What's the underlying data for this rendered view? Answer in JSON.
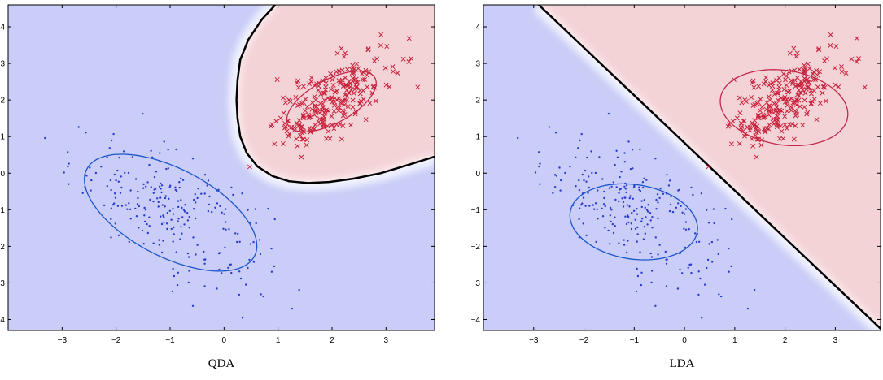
{
  "colors": {
    "blue_region": "#c9cdf7",
    "red_region": "#f4d3d7",
    "blue_points": "#2a3bd0",
    "red_points": "#c8203a",
    "blue_ellipse": "#1a55cc",
    "red_ellipse": "#c2284a",
    "boundary": "#000000"
  },
  "chart_data": [
    {
      "type": "scatter",
      "title": "QDA",
      "xlabel": "",
      "ylabel": "",
      "xlim": [
        -4,
        3.9
      ],
      "ylim": [
        -4.3,
        4.6
      ],
      "x_ticks": [
        -3,
        -2,
        -1,
        0,
        1,
        2,
        3
      ],
      "y_ticks": [
        -4,
        -3,
        -2,
        -1,
        0,
        1,
        2,
        3,
        4
      ],
      "grid": false,
      "series": [
        {
          "class": "blue",
          "marker": "dot",
          "n_points": 250,
          "mean": [
            -1,
            -1
          ],
          "cov": [
            [
              0.85,
              -0.55
            ],
            [
              -0.55,
              0.95
            ]
          ]
        },
        {
          "class": "red",
          "marker": "x",
          "n_points": 250,
          "mean": [
            2,
            2
          ],
          "cov": [
            [
              0.28,
              0.22
            ],
            [
              0.22,
              0.42
            ]
          ]
        }
      ],
      "ellipses": [
        {
          "class": "blue",
          "center": [
            -0.99,
            -1.08
          ],
          "semi_axes": [
            2.0,
            1.05
          ],
          "angle_deg": -45
        },
        {
          "class": "red",
          "center": [
            1.99,
            1.96
          ],
          "semi_axes": [
            1.05,
            0.52
          ],
          "angle_deg": 45
        }
      ],
      "decision_boundary": "quadratic"
    },
    {
      "type": "scatter",
      "title": "LDA",
      "xlabel": "",
      "ylabel": "",
      "xlim": [
        -4,
        3.9
      ],
      "ylim": [
        -4.3,
        4.6
      ],
      "x_ticks": [
        -3,
        -2,
        -1,
        0,
        1,
        2,
        3
      ],
      "y_ticks": [
        -4,
        -3,
        -2,
        -1,
        0,
        1,
        2,
        3,
        4
      ],
      "grid": false,
      "series": [
        {
          "class": "blue",
          "marker": "dot",
          "n_points": 250,
          "mean": [
            -1,
            -1
          ],
          "cov": [
            [
              0.85,
              -0.55
            ],
            [
              -0.55,
              0.95
            ]
          ]
        },
        {
          "class": "red",
          "marker": "x",
          "n_points": 250,
          "mean": [
            2,
            2
          ],
          "cov": [
            [
              0.28,
              0.22
            ],
            [
              0.22,
              0.42
            ]
          ]
        }
      ],
      "ellipses": [
        {
          "class": "blue",
          "center": [
            -1.01,
            -1.33
          ],
          "semi_axes": [
            1.3,
            1.0
          ],
          "angle_deg": -20
        },
        {
          "class": "red",
          "center": [
            1.98,
            1.79
          ],
          "semi_axes": [
            1.3,
            1.0
          ],
          "angle_deg": -20
        }
      ],
      "decision_boundary": "linear",
      "boundary_line": [
        [
          -2.9,
          4.6
        ],
        [
          3.9,
          -4.25
        ]
      ]
    }
  ]
}
